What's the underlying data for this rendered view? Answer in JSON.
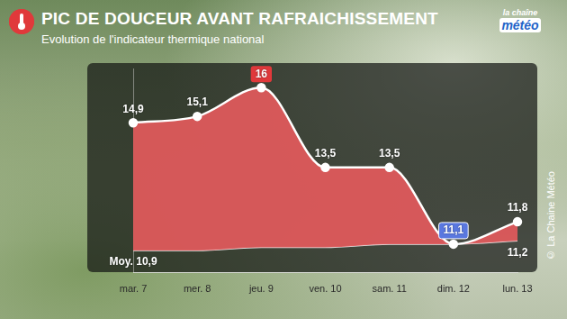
{
  "chart_data": {
    "type": "line",
    "title": "PIC DE DOUCEUR AVANT RAFRAICHISSEMENT",
    "subtitle": "Evolution de l'indicateur thermique national",
    "logo": [
      "la chaîne",
      "météo"
    ],
    "credit": "© La Chaine Météo",
    "categories": [
      "mar. 7",
      "mer. 8",
      "jeu. 9",
      "ven. 10",
      "sam. 11",
      "dim. 12",
      "lun. 13"
    ],
    "series": [
      {
        "type": "area",
        "color": "#e35a5c",
        "marker": "circle",
        "values": [
          14.9,
          15.1,
          16,
          13.5,
          13.5,
          11.1,
          11.8
        ],
        "value_labels": [
          "14,9",
          "15,1",
          "16",
          "13,5",
          "13,5",
          "11,1",
          "11,8"
        ]
      },
      {
        "type": "line",
        "color": "#e6e6e6",
        "marker": "none",
        "values": [
          10.9,
          10.9,
          11.0,
          11.0,
          11.1,
          11.1,
          11.2
        ],
        "value_labels": [
          "Moy. 10,9",
          null,
          null,
          null,
          null,
          null,
          "11,2"
        ]
      }
    ],
    "ylim": [
      10.2,
      16.6
    ],
    "yticks": [],
    "tick_labels": "x",
    "grid": false,
    "data_labels": true
  }
}
